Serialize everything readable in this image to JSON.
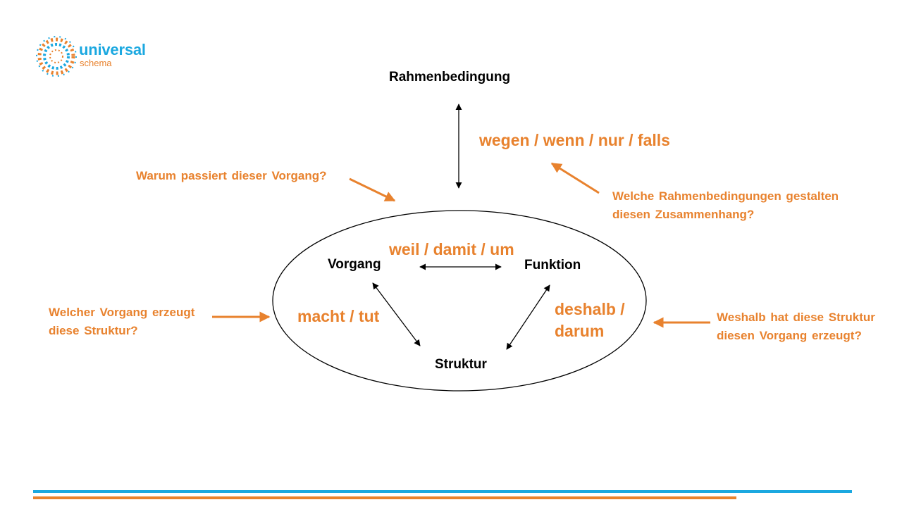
{
  "logo": {
    "word": "universal",
    "sub": "schema"
  },
  "top_node": "Rahmenbedingung",
  "nodes": {
    "vorgang": "Vorgang",
    "funktion": "Funktion",
    "struktur": "Struktur"
  },
  "connectors": {
    "top": "wegen /  wenn / nur / falls",
    "vorgang_funktion": "weil / damit / um",
    "vorgang_struktur": "macht / tut",
    "funktion_struktur_line1": "deshalb /",
    "funktion_struktur_line2": "darum"
  },
  "questions": {
    "warum": "Warum passiert dieser Vorgang?",
    "rahmen_line1": "Welche Rahmenbedingungen gestalten",
    "rahmen_line2": "diesen Zusammenhang?",
    "vorgang_line1": "Welcher Vorgang erzeugt",
    "vorgang_line2": "diese Struktur?",
    "weshalb_line1": "Weshalb hat diese Struktur",
    "weshalb_line2": "diesen Vorgang erzeugt?"
  },
  "colors": {
    "orange": "#E8822E",
    "blue": "#1BA8E0",
    "black": "#000000"
  }
}
